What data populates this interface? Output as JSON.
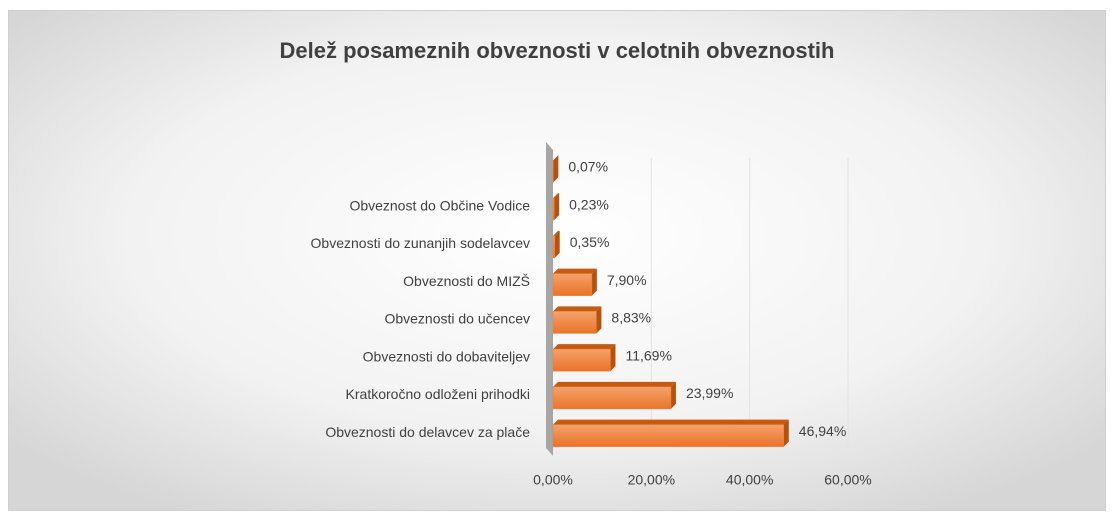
{
  "chart_data": {
    "type": "bar",
    "orientation": "horizontal",
    "title": "Delež posameznih obveznosti v celotnih obveznostih",
    "categories": [
      "Obveznosti do delavcev za plače",
      "Kratkoročno odloženi prihodki",
      "Obveznosti do dobaviteljev",
      "Obveznosti do učencev",
      "Obveznosti do MIZŠ",
      "Obveznosti do zunanjih sodelavcev",
      "Obveznost do Občine Vodice",
      null
    ],
    "values": [
      46.94,
      23.99,
      11.69,
      8.83,
      7.9,
      0.35,
      0.23,
      0.07
    ],
    "value_labels": [
      "46,94%",
      "23,99%",
      "11,69%",
      "8,83%",
      "7,90%",
      "0,35%",
      "0,23%",
      "0,07%"
    ],
    "color": "#ed7d31",
    "xlim": [
      0,
      60
    ],
    "xticks": [
      {
        "value": 0,
        "label": "0,00%"
      },
      {
        "value": 20,
        "label": "20,00%"
      },
      {
        "value": 40,
        "label": "40,00%"
      },
      {
        "value": 60,
        "label": "60,00%"
      }
    ],
    "grid": true
  }
}
